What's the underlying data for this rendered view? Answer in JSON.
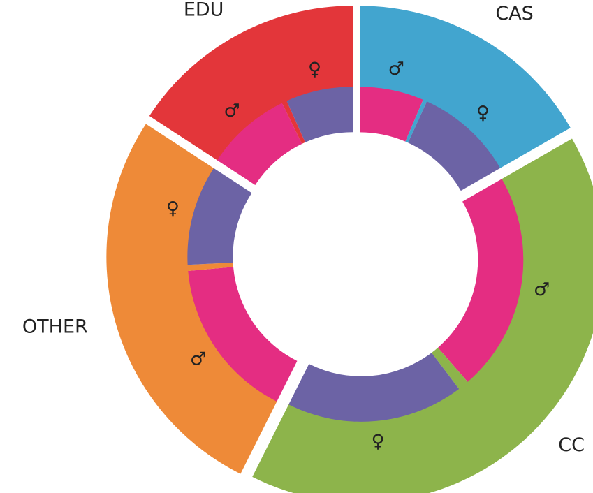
{
  "chart_data": {
    "type": "nested-donut",
    "categories": [
      "CAS",
      "CC",
      "OTHER",
      "EDU"
    ],
    "values": [
      16.7,
      40.7,
      26.8,
      15.8
    ],
    "colors": [
      "#42a5cf",
      "#8db44b",
      "#ee8a38",
      "#e3363a"
    ],
    "series": [
      {
        "name": "♂",
        "color": "#e42d82",
        "values": [
          6.4,
          21.9,
          16.2,
          8.6
        ]
      },
      {
        "values": [
          0.4,
          1.1,
          0.6,
          0.5
        ]
      },
      {
        "name": "♀",
        "color": "#6c63a5",
        "values": [
          9.9,
          17.7,
          10.0,
          6.7
        ]
      }
    ]
  }
}
